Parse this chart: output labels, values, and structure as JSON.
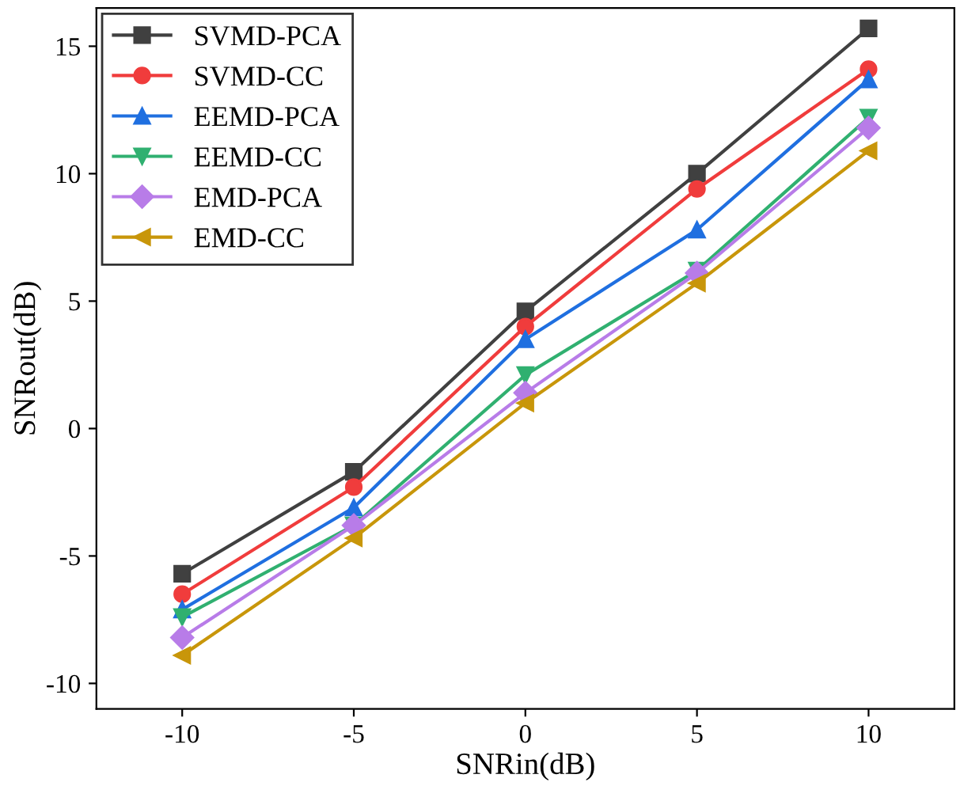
{
  "chart_data": {
    "type": "line",
    "xlabel": "SNRin(dB)",
    "ylabel": "SNRout(dB)",
    "x": [
      -10,
      -5,
      0,
      5,
      10
    ],
    "series": [
      {
        "name": "SVMD-PCA",
        "color": "#404040",
        "marker": "square",
        "values": [
          -5.7,
          -1.7,
          4.6,
          10.0,
          15.7
        ]
      },
      {
        "name": "SVMD-CC",
        "color": "#f03c3c",
        "marker": "circle",
        "values": [
          -6.5,
          -2.3,
          4.0,
          9.4,
          14.1
        ]
      },
      {
        "name": "EEMD-PCA",
        "color": "#1f6fe0",
        "marker": "triangle",
        "values": [
          -7.1,
          -3.1,
          3.5,
          7.8,
          13.7
        ]
      },
      {
        "name": "EEMD-CC",
        "color": "#30b070",
        "marker": "triangle_down",
        "values": [
          -7.4,
          -3.8,
          2.1,
          6.2,
          12.2
        ]
      },
      {
        "name": "EMD-PCA",
        "color": "#b87ce8",
        "marker": "diamond",
        "values": [
          -8.2,
          -3.8,
          1.4,
          6.1,
          11.8
        ]
      },
      {
        "name": "EMD-CC",
        "color": "#c8960a",
        "marker": "triangle_left",
        "values": [
          -8.9,
          -4.3,
          1.0,
          5.7,
          10.9
        ]
      }
    ],
    "xlim": [
      -12.5,
      12.5
    ],
    "xticks": [
      -10,
      -5,
      0,
      5,
      10
    ],
    "ylim": [
      -11,
      16.5
    ],
    "yticks": [
      -10,
      -5,
      0,
      5,
      10,
      15
    ],
    "legend": "top left",
    "grid": false,
    "line_style": "solid"
  }
}
